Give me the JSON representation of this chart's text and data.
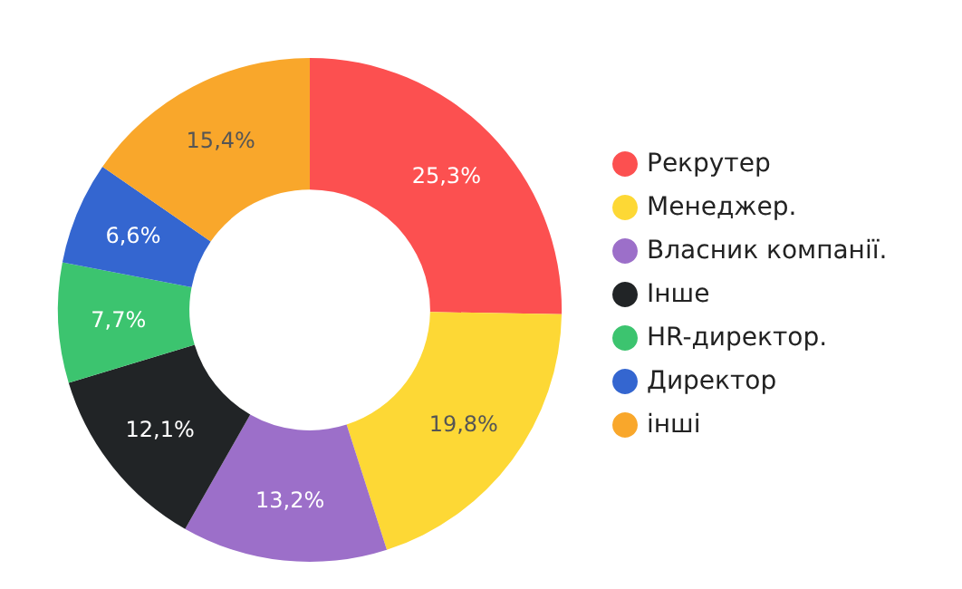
{
  "chart_data": {
    "type": "donut",
    "categories": [
      "Рекрутер",
      "Менеджер.",
      "Власник компанії.",
      "Інше",
      "HR-директор.",
      "Директор",
      "інші"
    ],
    "values": [
      25.3,
      19.8,
      13.2,
      12.1,
      7.7,
      6.6,
      15.4
    ],
    "colors": [
      "#fc5050",
      "#fdd835",
      "#9c6fc9",
      "#212426",
      "#3cc46f",
      "#3466d0",
      "#f9a72b"
    ],
    "value_labels": [
      "25,3%",
      "19,8%",
      "13,2%",
      "12,1%",
      "7,7%",
      "6,6%",
      "15,4%"
    ],
    "legend": "right"
  }
}
